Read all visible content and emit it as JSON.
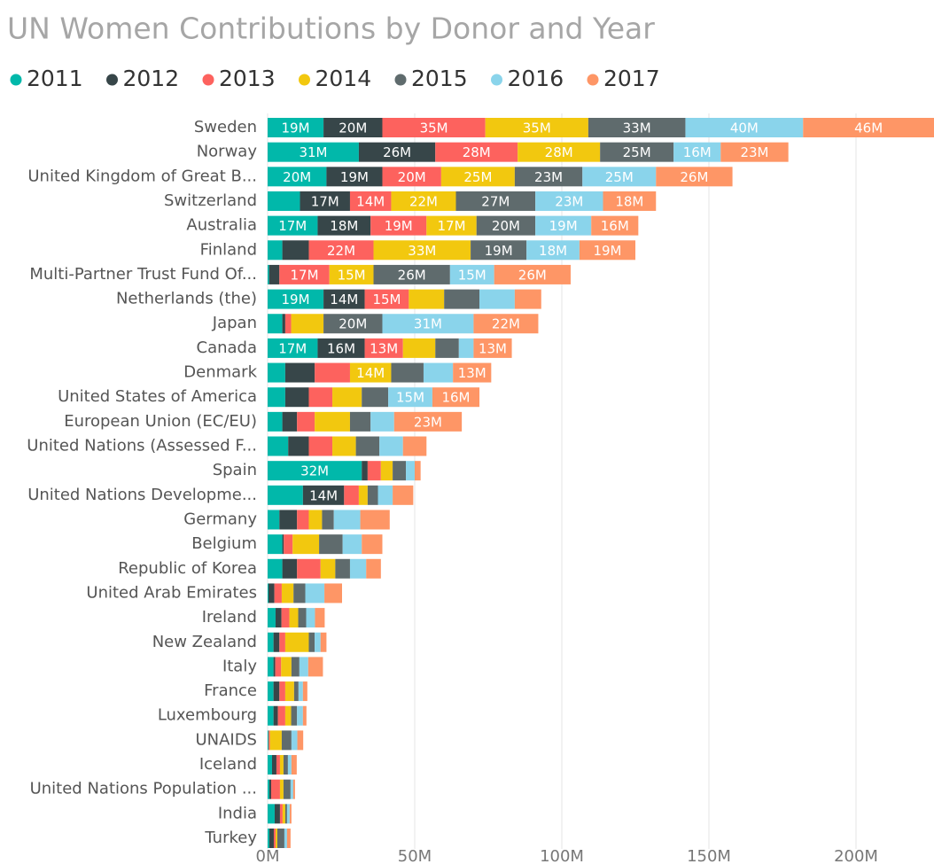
{
  "chart_data": {
    "type": "stacked-bar-horizontal",
    "title": "UN Women Contributions by Donor and Year",
    "categories": [
      "Sweden",
      "Norway",
      "United Kingdom of Great B...",
      "Switzerland",
      "Australia",
      "Finland",
      "Multi-Partner Trust Fund Of...",
      "Netherlands (the)",
      "Japan",
      "Canada",
      "Denmark",
      "United States of America",
      "European Union (EC/EU)",
      "United Nations (Assessed F...",
      "Spain",
      "United Nations Developme...",
      "Germany",
      "Belgium",
      "Republic of Korea",
      "United Arab Emirates",
      "Ireland",
      "New Zealand",
      "Italy",
      "France",
      "Luxembourg",
      "UNAIDS",
      "Iceland",
      "United Nations Population ...",
      "India",
      "Turkey"
    ],
    "series": [
      {
        "name": "2011",
        "color": "#01b8aa",
        "values": [
          19,
          31,
          20,
          11,
          17,
          5,
          0.5,
          19,
          5,
          17,
          6,
          6,
          5,
          7,
          32,
          12,
          4,
          5,
          5,
          0.3,
          2.7,
          2,
          2,
          2,
          2,
          0.3,
          1.5,
          0.6,
          2.4,
          0.6
        ],
        "value_labels": [
          "19M",
          "31M",
          "20M",
          null,
          "17M",
          null,
          null,
          "19M",
          null,
          "17M",
          null,
          null,
          null,
          null,
          "32M",
          null,
          null,
          null,
          null,
          null,
          null,
          null,
          null,
          null,
          null,
          null,
          null,
          null,
          null,
          null
        ]
      },
      {
        "name": "2012",
        "color": "#374649",
        "values": [
          20,
          26,
          19,
          17,
          18,
          9,
          3.5,
          14,
          1,
          16,
          10,
          8,
          5,
          7,
          2,
          14,
          6,
          0.5,
          5,
          2,
          2,
          2,
          0.6,
          2,
          1.5,
          0,
          1.5,
          0.6,
          1.8,
          1.5
        ],
        "value_labels": [
          "20M",
          "26M",
          "19M",
          "17M",
          "18M",
          null,
          null,
          "14M",
          null,
          "16M",
          null,
          null,
          null,
          null,
          null,
          "14M",
          null,
          null,
          null,
          null,
          null,
          null,
          null,
          null,
          null,
          null,
          null,
          null,
          null,
          null
        ]
      },
      {
        "name": "2013",
        "color": "#fd625e",
        "values": [
          35,
          28,
          20,
          14,
          19,
          22,
          17,
          15,
          2,
          13,
          12,
          8,
          6,
          8,
          4.5,
          5,
          4,
          3,
          8,
          2.5,
          2.7,
          2,
          2,
          2,
          2.5,
          0.5,
          1.2,
          3,
          0.9,
          0.6
        ],
        "value_labels": [
          "35M",
          "28M",
          "20M",
          "14M",
          "19M",
          "22M",
          "17M",
          "15M",
          null,
          "13M",
          null,
          null,
          null,
          null,
          null,
          null,
          null,
          null,
          null,
          null,
          null,
          null,
          null,
          null,
          null,
          null,
          null,
          null,
          null,
          null
        ]
      },
      {
        "name": "2014",
        "color": "#f2c80f",
        "values": [
          35,
          28,
          25,
          22,
          17,
          33,
          15,
          12,
          11,
          11,
          14,
          10,
          12,
          8,
          4,
          3,
          4.5,
          9,
          5,
          4,
          3,
          8,
          3.5,
          3,
          2,
          4,
          1.2,
          1.2,
          0.9,
          0.6
        ],
        "value_labels": [
          "35M",
          "28M",
          "25M",
          "22M",
          "17M",
          "33M",
          "15M",
          null,
          null,
          null,
          "14M",
          null,
          null,
          null,
          null,
          null,
          null,
          null,
          null,
          null,
          null,
          null,
          null,
          null,
          null,
          null,
          null,
          null,
          null,
          null
        ]
      },
      {
        "name": "2015",
        "color": "#5f6b6d",
        "values": [
          33,
          25,
          23,
          27,
          20,
          19,
          26,
          12,
          20,
          8,
          11,
          9,
          7,
          8,
          4.5,
          3.5,
          4,
          8,
          5,
          4,
          2.7,
          2,
          2.7,
          1.5,
          2,
          3.3,
          1.5,
          2.4,
          0.6,
          2.4
        ],
        "value_labels": [
          "33M",
          "25M",
          "23M",
          "27M",
          "20M",
          "19M",
          "26M",
          null,
          "20M",
          null,
          null,
          null,
          null,
          null,
          null,
          null,
          null,
          null,
          null,
          null,
          null,
          null,
          null,
          null,
          null,
          null,
          null,
          null,
          null,
          null
        ]
      },
      {
        "name": "2016",
        "color": "#8ad4eb",
        "values": [
          40,
          16,
          25,
          23,
          19,
          18,
          15,
          12,
          31,
          5,
          10,
          15,
          8,
          8,
          3,
          5,
          9,
          6.5,
          5.5,
          6.5,
          3,
          2,
          3,
          1.5,
          2,
          2,
          1.2,
          0.9,
          0.9,
          0.9
        ],
        "value_labels": [
          "40M",
          "16M",
          "25M",
          "23M",
          "19M",
          "18M",
          "15M",
          null,
          "31M",
          null,
          null,
          "15M",
          null,
          null,
          null,
          null,
          null,
          null,
          null,
          null,
          null,
          null,
          null,
          null,
          null,
          null,
          null,
          null,
          null,
          null
        ]
      },
      {
        "name": "2017",
        "color": "#fe9666",
        "values": [
          46,
          23,
          26,
          18,
          16,
          19,
          26,
          9,
          22,
          13,
          13,
          16,
          23,
          8,
          2,
          7,
          10,
          7,
          5,
          6,
          3.3,
          2,
          5,
          1.5,
          1.2,
          2,
          1.8,
          0.6,
          0.6,
          1.2
        ],
        "value_labels": [
          "46M",
          "23M",
          "26M",
          "18M",
          "16M",
          "19M",
          "26M",
          null,
          "22M",
          "13M",
          "13M",
          "16M",
          "23M",
          null,
          null,
          null,
          null,
          null,
          null,
          null,
          null,
          null,
          null,
          null,
          null,
          null,
          null,
          null,
          null,
          null
        ]
      }
    ],
    "xlim": [
      0,
      226.5
    ],
    "xticks": [
      {
        "value": 0,
        "label": "0M"
      },
      {
        "value": 50,
        "label": "50M"
      },
      {
        "value": 100,
        "label": "100M"
      },
      {
        "value": 150,
        "label": "150M"
      },
      {
        "value": 200,
        "label": "200M"
      }
    ],
    "grid": true
  }
}
